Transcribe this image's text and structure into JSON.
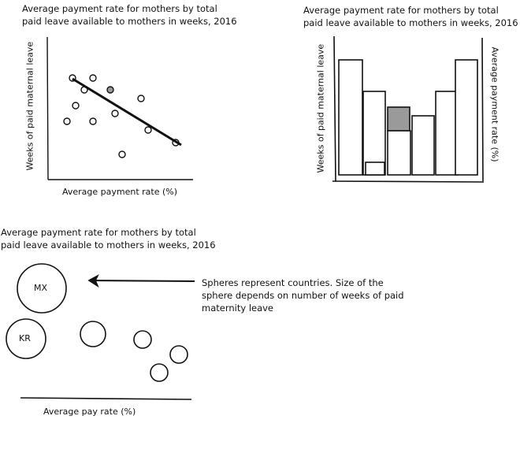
{
  "panels": {
    "scatter": {
      "title": "Average payment rate for mothers by total\npaid leave available to mothers in weeks, 2016",
      "xlabel": "Average payment rate (%)",
      "ylabel": "Weeks of paid maternal leave"
    },
    "bars": {
      "title": "Average payment rate for mothers by total\npaid leave available to mothers in weeks, 2016",
      "ylabel_left": "Weeks of paid maternal leave",
      "ylabel_right": "Average payment rate (%)"
    },
    "bubbles": {
      "title": "Average payment rate for mothers by total\npaid leave available to mothers in weeks, 2016",
      "xlabel": "Average pay rate (%)",
      "note": "Spheres represent countries. Size of the\nsphere depends on number of weeks of paid\nmaternity leave",
      "labels": [
        "MX",
        "KR"
      ]
    }
  },
  "colors": {
    "ink": "#111111",
    "highlight": "#9a9a9a",
    "paper": "#ffffff"
  }
}
